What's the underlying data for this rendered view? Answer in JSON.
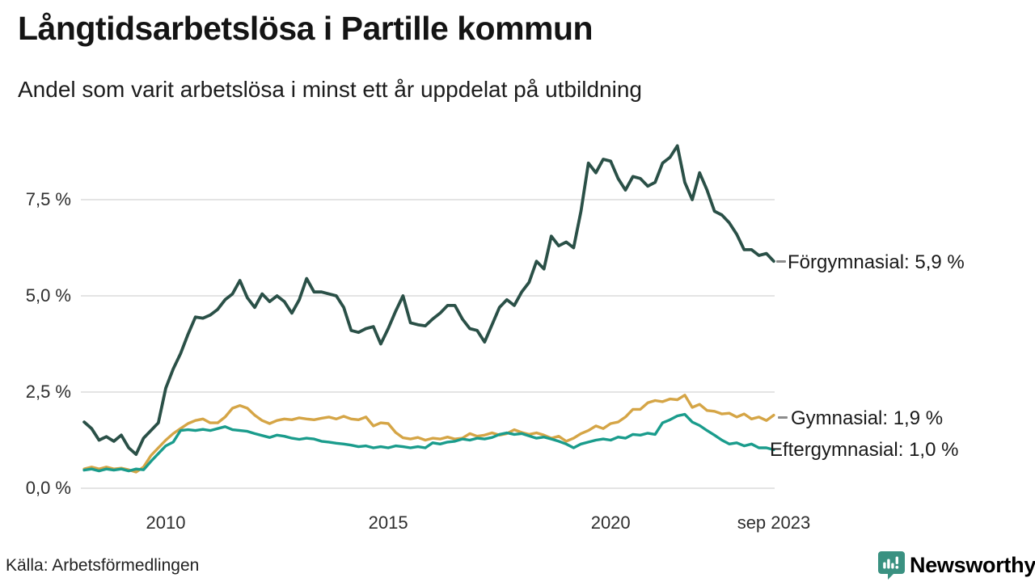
{
  "page": {
    "title": "Långtidsarbetslösa i Partille kommun",
    "subtitle": "Andel som varit arbetslösa i minst ett år uppdelat på utbildning",
    "source": "Källa: Arbetsförmedlingen",
    "brand": {
      "name": "Newsworthy",
      "color": "#3a9181",
      "icon": "speech-bubble-bar-chart-icon"
    }
  },
  "chart_data": {
    "type": "line",
    "title": "Långtidsarbetslösa i Partille kommun",
    "subtitle": "Andel som varit arbetslösa i minst ett år uppdelat på utbildning",
    "unit": "percent",
    "grid": "horizontal",
    "gridline_color": "#dcdcdc",
    "ylim": [
      0,
      9.4
    ],
    "x_start_year": 2008.1667,
    "x_step_years": 0.166667,
    "x_end_label": "sep 2023",
    "y_ticks": [
      {
        "value": 0,
        "label": "0,0 %"
      },
      {
        "value": 2.5,
        "label": "2,5 %"
      },
      {
        "value": 5,
        "label": "5,0 %"
      },
      {
        "value": 7.5,
        "label": "7,5 %"
      }
    ],
    "x_ticks": [
      {
        "value": 2010,
        "label": "2010"
      },
      {
        "value": 2015,
        "label": "2015"
      },
      {
        "value": 2020,
        "label": "2020"
      },
      {
        "value": 2023.667,
        "label": "sep 2023"
      }
    ],
    "series": [
      {
        "name": "Förgymnasial",
        "color": "#2a5047",
        "latest_value_label": "5,9 %",
        "end_label": "Förgymnasial: 5,9 %",
        "values": [
          1.72,
          1.55,
          1.25,
          1.34,
          1.22,
          1.38,
          1.05,
          0.88,
          1.3,
          1.5,
          1.7,
          2.6,
          3.1,
          3.5,
          4.0,
          4.45,
          4.42,
          4.5,
          4.65,
          4.9,
          5.05,
          5.4,
          4.95,
          4.7,
          5.05,
          4.85,
          5.0,
          4.85,
          4.55,
          4.9,
          5.45,
          5.1,
          5.1,
          5.05,
          5.0,
          4.7,
          4.1,
          4.05,
          4.15,
          4.2,
          3.75,
          4.15,
          4.6,
          5.0,
          4.3,
          4.25,
          4.22,
          4.4,
          4.55,
          4.75,
          4.75,
          4.4,
          4.15,
          4.1,
          3.8,
          4.25,
          4.7,
          4.9,
          4.75,
          5.1,
          5.35,
          5.9,
          5.7,
          6.55,
          6.3,
          6.4,
          6.25,
          7.2,
          8.45,
          8.2,
          8.55,
          8.5,
          8.05,
          7.75,
          8.1,
          8.05,
          7.85,
          7.95,
          8.45,
          8.6,
          8.9,
          7.95,
          7.5,
          8.2,
          7.75,
          7.2,
          7.1,
          6.9,
          6.6,
          6.2,
          6.2,
          6.05,
          6.1,
          5.9
        ]
      },
      {
        "name": "Gymnasial",
        "color": "#d5a546",
        "latest_value_label": "1,9 %",
        "end_label": "Gymnasial: 1,9 %",
        "values": [
          0.5,
          0.55,
          0.5,
          0.55,
          0.5,
          0.52,
          0.48,
          0.42,
          0.55,
          0.85,
          1.05,
          1.25,
          1.42,
          1.55,
          1.68,
          1.76,
          1.8,
          1.7,
          1.7,
          1.85,
          2.08,
          2.15,
          2.08,
          1.9,
          1.76,
          1.68,
          1.76,
          1.8,
          1.78,
          1.83,
          1.8,
          1.78,
          1.82,
          1.85,
          1.8,
          1.87,
          1.8,
          1.78,
          1.85,
          1.62,
          1.7,
          1.68,
          1.45,
          1.31,
          1.28,
          1.32,
          1.25,
          1.3,
          1.28,
          1.33,
          1.28,
          1.3,
          1.42,
          1.35,
          1.38,
          1.44,
          1.38,
          1.42,
          1.52,
          1.45,
          1.4,
          1.44,
          1.38,
          1.3,
          1.35,
          1.22,
          1.3,
          1.42,
          1.5,
          1.62,
          1.55,
          1.68,
          1.72,
          1.85,
          2.05,
          2.05,
          2.22,
          2.28,
          2.25,
          2.32,
          2.3,
          2.42,
          2.1,
          2.18,
          2.02,
          2.0,
          1.93,
          1.95,
          1.85,
          1.93,
          1.8,
          1.85,
          1.76,
          1.9
        ]
      },
      {
        "name": "Eftergymnasial",
        "color": "#1a9c8c",
        "latest_value_label": "1,0 %",
        "end_label": "Eftergymnasial: 1,0 %",
        "values": [
          0.47,
          0.5,
          0.45,
          0.5,
          0.47,
          0.5,
          0.45,
          0.5,
          0.48,
          0.7,
          0.9,
          1.1,
          1.2,
          1.5,
          1.52,
          1.5,
          1.53,
          1.5,
          1.55,
          1.6,
          1.52,
          1.5,
          1.48,
          1.42,
          1.37,
          1.32,
          1.38,
          1.35,
          1.3,
          1.27,
          1.3,
          1.28,
          1.22,
          1.2,
          1.17,
          1.15,
          1.12,
          1.08,
          1.1,
          1.05,
          1.08,
          1.05,
          1.1,
          1.08,
          1.05,
          1.08,
          1.05,
          1.18,
          1.15,
          1.2,
          1.22,
          1.28,
          1.25,
          1.3,
          1.28,
          1.32,
          1.4,
          1.44,
          1.4,
          1.42,
          1.36,
          1.3,
          1.33,
          1.28,
          1.22,
          1.15,
          1.05,
          1.15,
          1.2,
          1.25,
          1.28,
          1.25,
          1.33,
          1.3,
          1.4,
          1.38,
          1.43,
          1.4,
          1.7,
          1.78,
          1.88,
          1.92,
          1.72,
          1.63,
          1.5,
          1.38,
          1.25,
          1.15,
          1.18,
          1.1,
          1.15,
          1.05,
          1.05,
          1.0
        ]
      }
    ]
  }
}
